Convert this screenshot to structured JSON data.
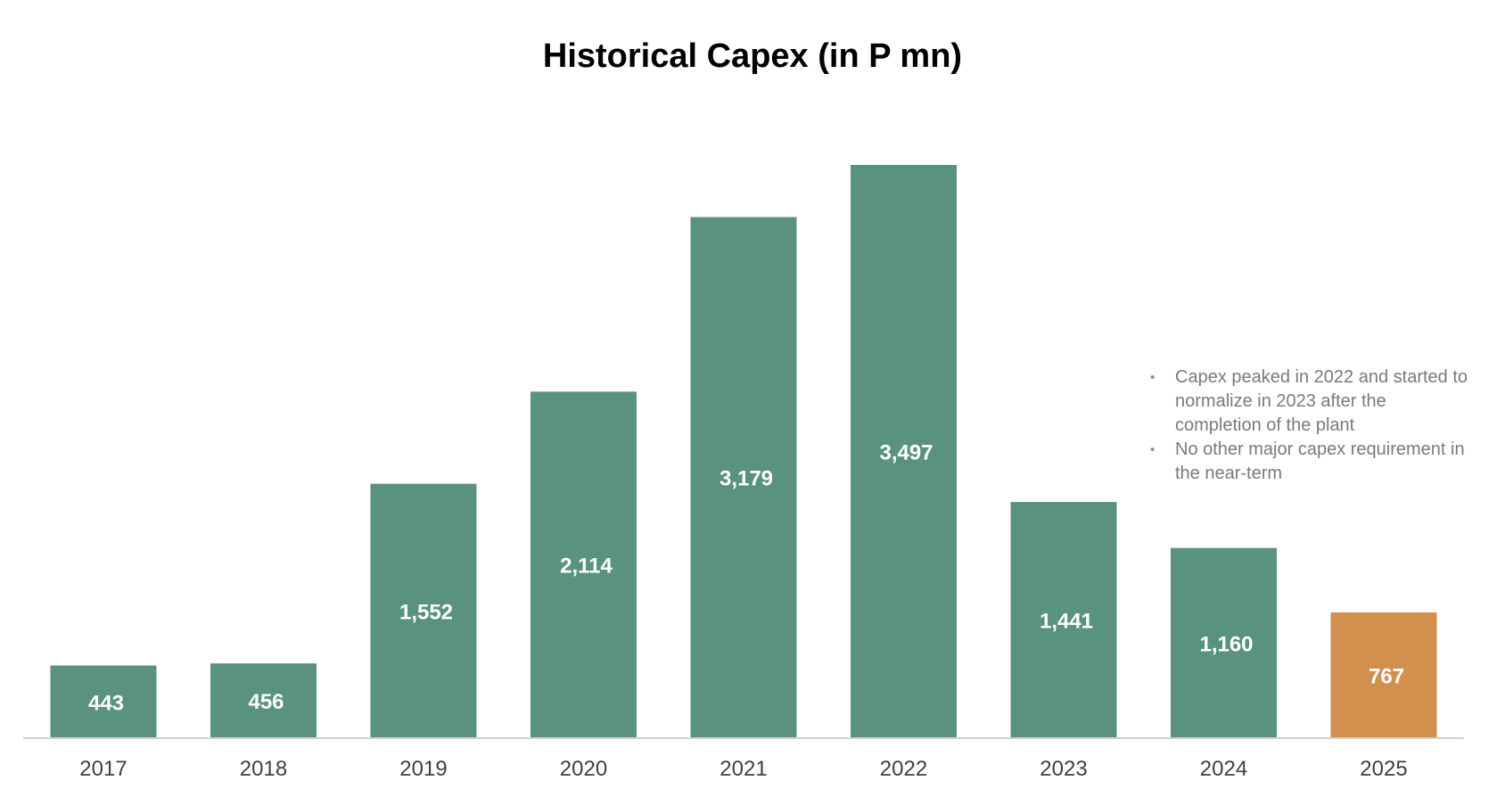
{
  "chart_data": {
    "type": "bar",
    "title": "Historical Capex (in P mn)",
    "xlabel": "",
    "ylabel": "",
    "categories": [
      "2017",
      "2018",
      "2019",
      "2020",
      "2021",
      "2022",
      "2023",
      "2024",
      "2025"
    ],
    "values": [
      443,
      456,
      1552,
      2114,
      3179,
      3497,
      1441,
      1160,
      767
    ],
    "data_labels": [
      "443",
      "456",
      "1,552",
      "2,114",
      "3,179",
      "3,497",
      "1,441",
      "1,160",
      "767"
    ],
    "ylim": [
      0,
      3497
    ],
    "grid": false,
    "legend": "none",
    "colors": {
      "default_bar": "#5a937d",
      "highlight_bar": "#d28f4d",
      "axis_line": "#d0d0d0",
      "data_label": "#ffffff",
      "tick_label": "#404040"
    },
    "highlight_category": "2025",
    "notes": [
      "Capex peaked in 2022 and started to normalize in 2023 after the completion of the plant",
      "No other major capex requirement in the near-term"
    ]
  }
}
